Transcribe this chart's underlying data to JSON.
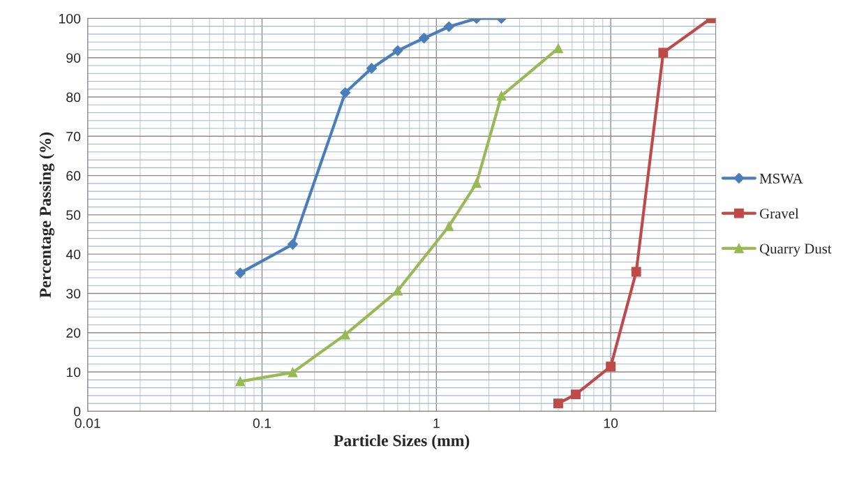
{
  "chart_data": {
    "type": "line",
    "xlabel": "Particle Sizes (mm)",
    "ylabel": "Percentage Passing (%)",
    "log": "x",
    "xlim": [
      0.01,
      40
    ],
    "xticks": [
      0.01,
      0.1,
      1,
      10
    ],
    "ylim": [
      0,
      100
    ],
    "yticks": [
      0,
      {
        "value": 2,
        "label": null
      },
      {
        "value": 4,
        "label": null
      },
      {
        "value": 6,
        "label": null
      },
      {
        "value": 8,
        "label": null
      },
      10,
      {
        "value": 12,
        "label": null
      },
      {
        "value": 14,
        "label": null
      },
      {
        "value": 16,
        "label": null
      },
      {
        "value": 18,
        "label": null
      },
      20,
      {
        "value": 22,
        "label": null
      },
      {
        "value": 24,
        "label": null
      },
      {
        "value": 26,
        "label": null
      },
      {
        "value": 28,
        "label": null
      },
      30,
      {
        "value": 32,
        "label": null
      },
      {
        "value": 34,
        "label": null
      },
      {
        "value": 36,
        "label": null
      },
      {
        "value": 38,
        "label": null
      },
      40,
      {
        "value": 42,
        "label": null
      },
      {
        "value": 44,
        "label": null
      },
      {
        "value": 46,
        "label": null
      },
      {
        "value": 48,
        "label": null
      },
      50,
      {
        "value": 52,
        "label": null
      },
      {
        "value": 54,
        "label": null
      },
      {
        "value": 56,
        "label": null
      },
      {
        "value": 58,
        "label": null
      },
      60,
      {
        "value": 62,
        "label": null
      },
      {
        "value": 64,
        "label": null
      },
      {
        "value": 66,
        "label": null
      },
      {
        "value": 68,
        "label": null
      },
      70,
      {
        "value": 72,
        "label": null
      },
      {
        "value": 74,
        "label": null
      },
      {
        "value": 76,
        "label": null
      },
      {
        "value": 78,
        "label": null
      },
      80,
      {
        "value": 82,
        "label": null
      },
      {
        "value": 84,
        "label": null
      },
      {
        "value": 86,
        "label": null
      },
      {
        "value": 88,
        "label": null
      },
      90,
      {
        "value": 92,
        "label": null
      },
      {
        "value": 94,
        "label": null
      },
      {
        "value": 96,
        "label": null
      },
      {
        "value": 98,
        "label": null
      },
      100
    ],
    "grid": true,
    "legend": "right",
    "series": [
      {
        "name": "MSWA",
        "color": "#4a7ebb",
        "marker": "diamond",
        "x": [
          0.075,
          0.15,
          0.3,
          0.425,
          0.6,
          0.85,
          1.18,
          1.7,
          2.36
        ],
        "values": [
          35.2,
          42.5,
          81.1,
          87.3,
          91.8,
          95,
          97.9,
          100,
          100
        ]
      },
      {
        "name": "Gravel",
        "color": "#be4b48",
        "marker": "square",
        "x": [
          5,
          6.3,
          10,
          14,
          20,
          37.5
        ],
        "values": [
          2,
          4.3,
          11.4,
          35.5,
          91.3,
          100
        ]
      },
      {
        "name": "Quarry Dust",
        "color": "#98b954",
        "marker": "triangle",
        "x": [
          0.075,
          0.15,
          0.3,
          0.6,
          1.18,
          1.7,
          2.36,
          5
        ],
        "values": [
          7.6,
          9.9,
          19.5,
          30.7,
          47.1,
          58.1,
          80.3,
          92.4
        ]
      }
    ]
  }
}
